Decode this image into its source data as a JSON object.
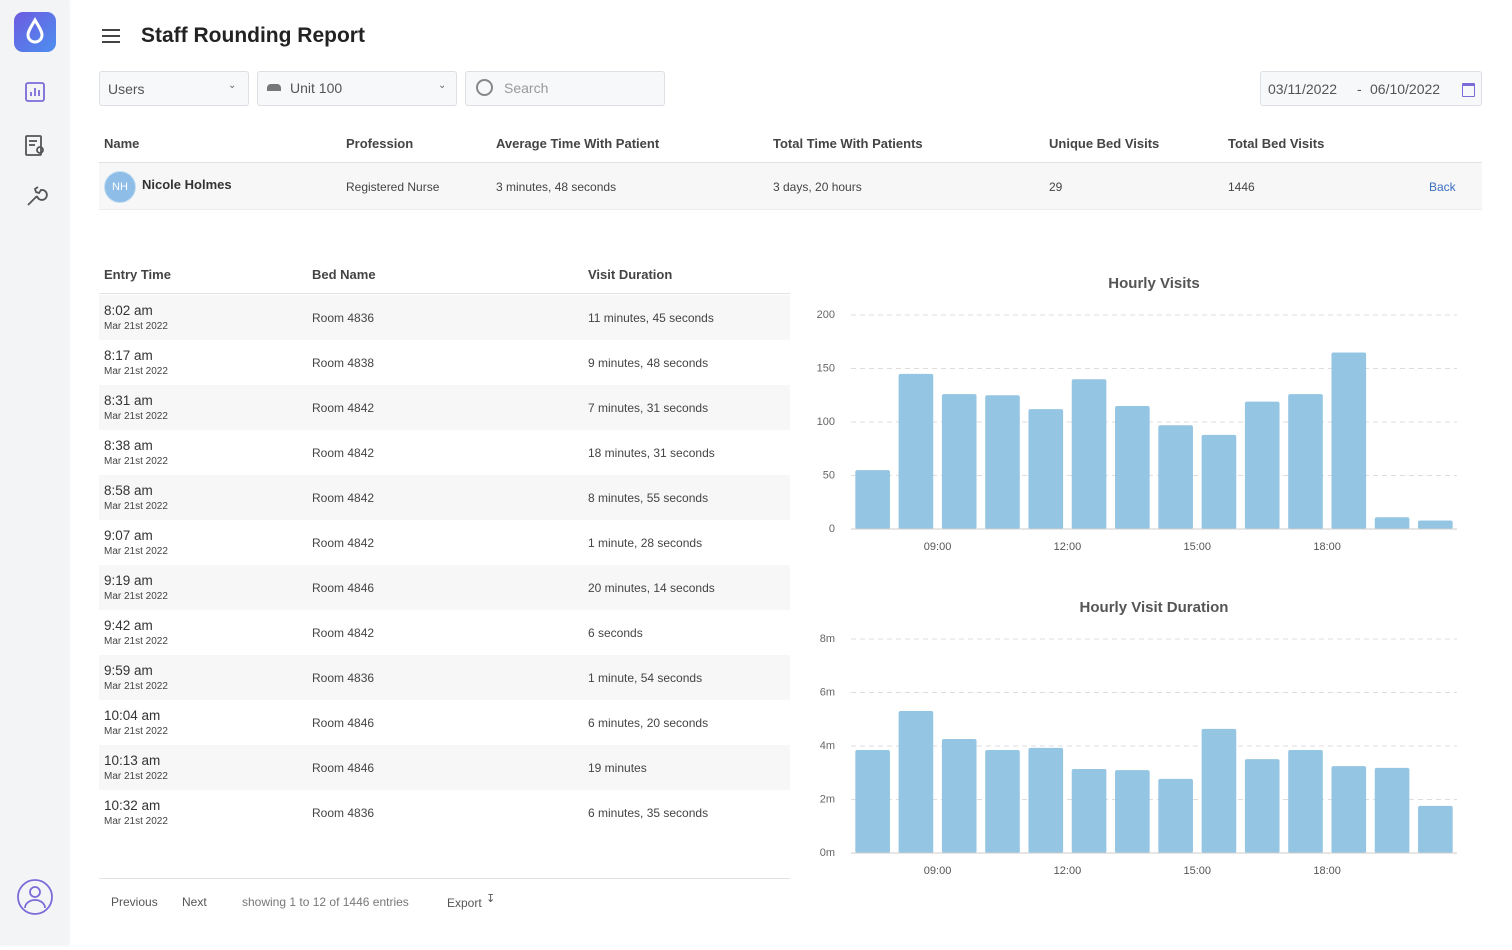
{
  "header": {
    "title": "Staff Rounding Report"
  },
  "filters": {
    "users": "Users",
    "unit": "Unit 100",
    "search": "Search",
    "date_from": "03/11/2022",
    "date_sep": "-",
    "date_to": "06/10/2022"
  },
  "summary": {
    "columns": [
      "Name",
      "Profession",
      "Average Time With Patient",
      "Total Time With Patients",
      "Unique Bed Visits",
      "Total Bed Visits"
    ],
    "row": {
      "initials": "NH",
      "name": "Nicole Holmes",
      "profession": "Registered Nurse",
      "average": "3 minutes, 48 seconds",
      "total": "3 days, 20 hours",
      "unique": 29,
      "visits": 1446
    },
    "back": "Back"
  },
  "table": {
    "columns": [
      "Entry Time",
      "Bed Name",
      "Visit Duration"
    ],
    "rows": [
      [
        "8:02 am",
        "Mar 21st 2022",
        "Room 4836",
        "11 minutes, 45 seconds"
      ],
      [
        "8:17 am",
        "Mar 21st 2022",
        "Room 4838",
        "9 minutes, 48 seconds"
      ],
      [
        "8:31 am",
        "Mar 21st 2022",
        "Room 4842",
        "7 minutes, 31 seconds"
      ],
      [
        "8:38 am",
        "Mar 21st 2022",
        "Room 4842",
        "18 minutes, 31 seconds"
      ],
      [
        "8:58 am",
        "Mar 21st 2022",
        "Room 4842",
        "8 minutes, 55 seconds"
      ],
      [
        "9:07 am",
        "Mar 21st 2022",
        "Room 4842",
        "1 minute, 28 seconds"
      ],
      [
        "9:19 am",
        "Mar 21st 2022",
        "Room 4846",
        "20 minutes, 14 seconds"
      ],
      [
        "9:42 am",
        "Mar 21st 2022",
        "Room 4842",
        "6 seconds"
      ],
      [
        "9:59 am",
        "Mar 21st 2022",
        "Room 4836",
        "1 minute, 54 seconds"
      ],
      [
        "10:04 am",
        "Mar 21st 2022",
        "Room 4846",
        "6 minutes, 20 seconds"
      ],
      [
        "10:13 am",
        "Mar 21st 2022",
        "Room 4846",
        "19 minutes"
      ],
      [
        "10:32 am",
        "Mar 21st 2022",
        "Room 4836",
        "6 minutes, 35 seconds"
      ]
    ]
  },
  "footer": {
    "previous": "Previous",
    "next": "Next",
    "info": "showing 1 to 12 of 1446 entries",
    "export": "Export"
  },
  "chart_data": [
    {
      "type": "histogram",
      "title": "Hourly Visits",
      "bins": [
        7,
        8,
        9,
        10,
        11,
        12,
        13,
        14,
        15,
        16,
        17,
        18,
        19,
        20,
        21
      ],
      "values": [
        55,
        145,
        126,
        125,
        112,
        140,
        115,
        97,
        88,
        119,
        126,
        165,
        11,
        8
      ],
      "color": "#94c5e3",
      "xlim": [
        7,
        21
      ],
      "xticks": [
        {
          "value": 9,
          "label": "09:00"
        },
        {
          "value": 12,
          "label": "12:00"
        },
        {
          "value": 15,
          "label": "15:00"
        },
        {
          "value": 18,
          "label": "18:00"
        }
      ],
      "ylim": [
        0,
        200
      ],
      "yticks": [
        0,
        50,
        100,
        150,
        200
      ],
      "grid": true
    },
    {
      "type": "histogram",
      "title": "Hourly Visit Duration",
      "bins": [
        7,
        8,
        9,
        10,
        11,
        12,
        13,
        14,
        15,
        16,
        17,
        18,
        19,
        20,
        21
      ],
      "values": [
        3.85,
        5.31,
        4.26,
        3.85,
        3.93,
        3.14,
        3.1,
        2.77,
        4.64,
        3.51,
        3.85,
        3.25,
        3.18,
        1.76
      ],
      "color": "#94c5e3",
      "xlim": [
        7,
        21
      ],
      "xticks": [
        {
          "value": 9,
          "label": "09:00"
        },
        {
          "value": 12,
          "label": "12:00"
        },
        {
          "value": 15,
          "label": "15:00"
        },
        {
          "value": 18,
          "label": "18:00"
        }
      ],
      "ylim": [
        0,
        8
      ],
      "yticks": [
        {
          "value": 0,
          "label": "0m"
        },
        {
          "value": 2,
          "label": "2m"
        },
        {
          "value": 4,
          "label": "4m"
        },
        {
          "value": 6,
          "label": "6m"
        },
        {
          "value": 8,
          "label": "8m"
        }
      ],
      "grid": true
    }
  ]
}
